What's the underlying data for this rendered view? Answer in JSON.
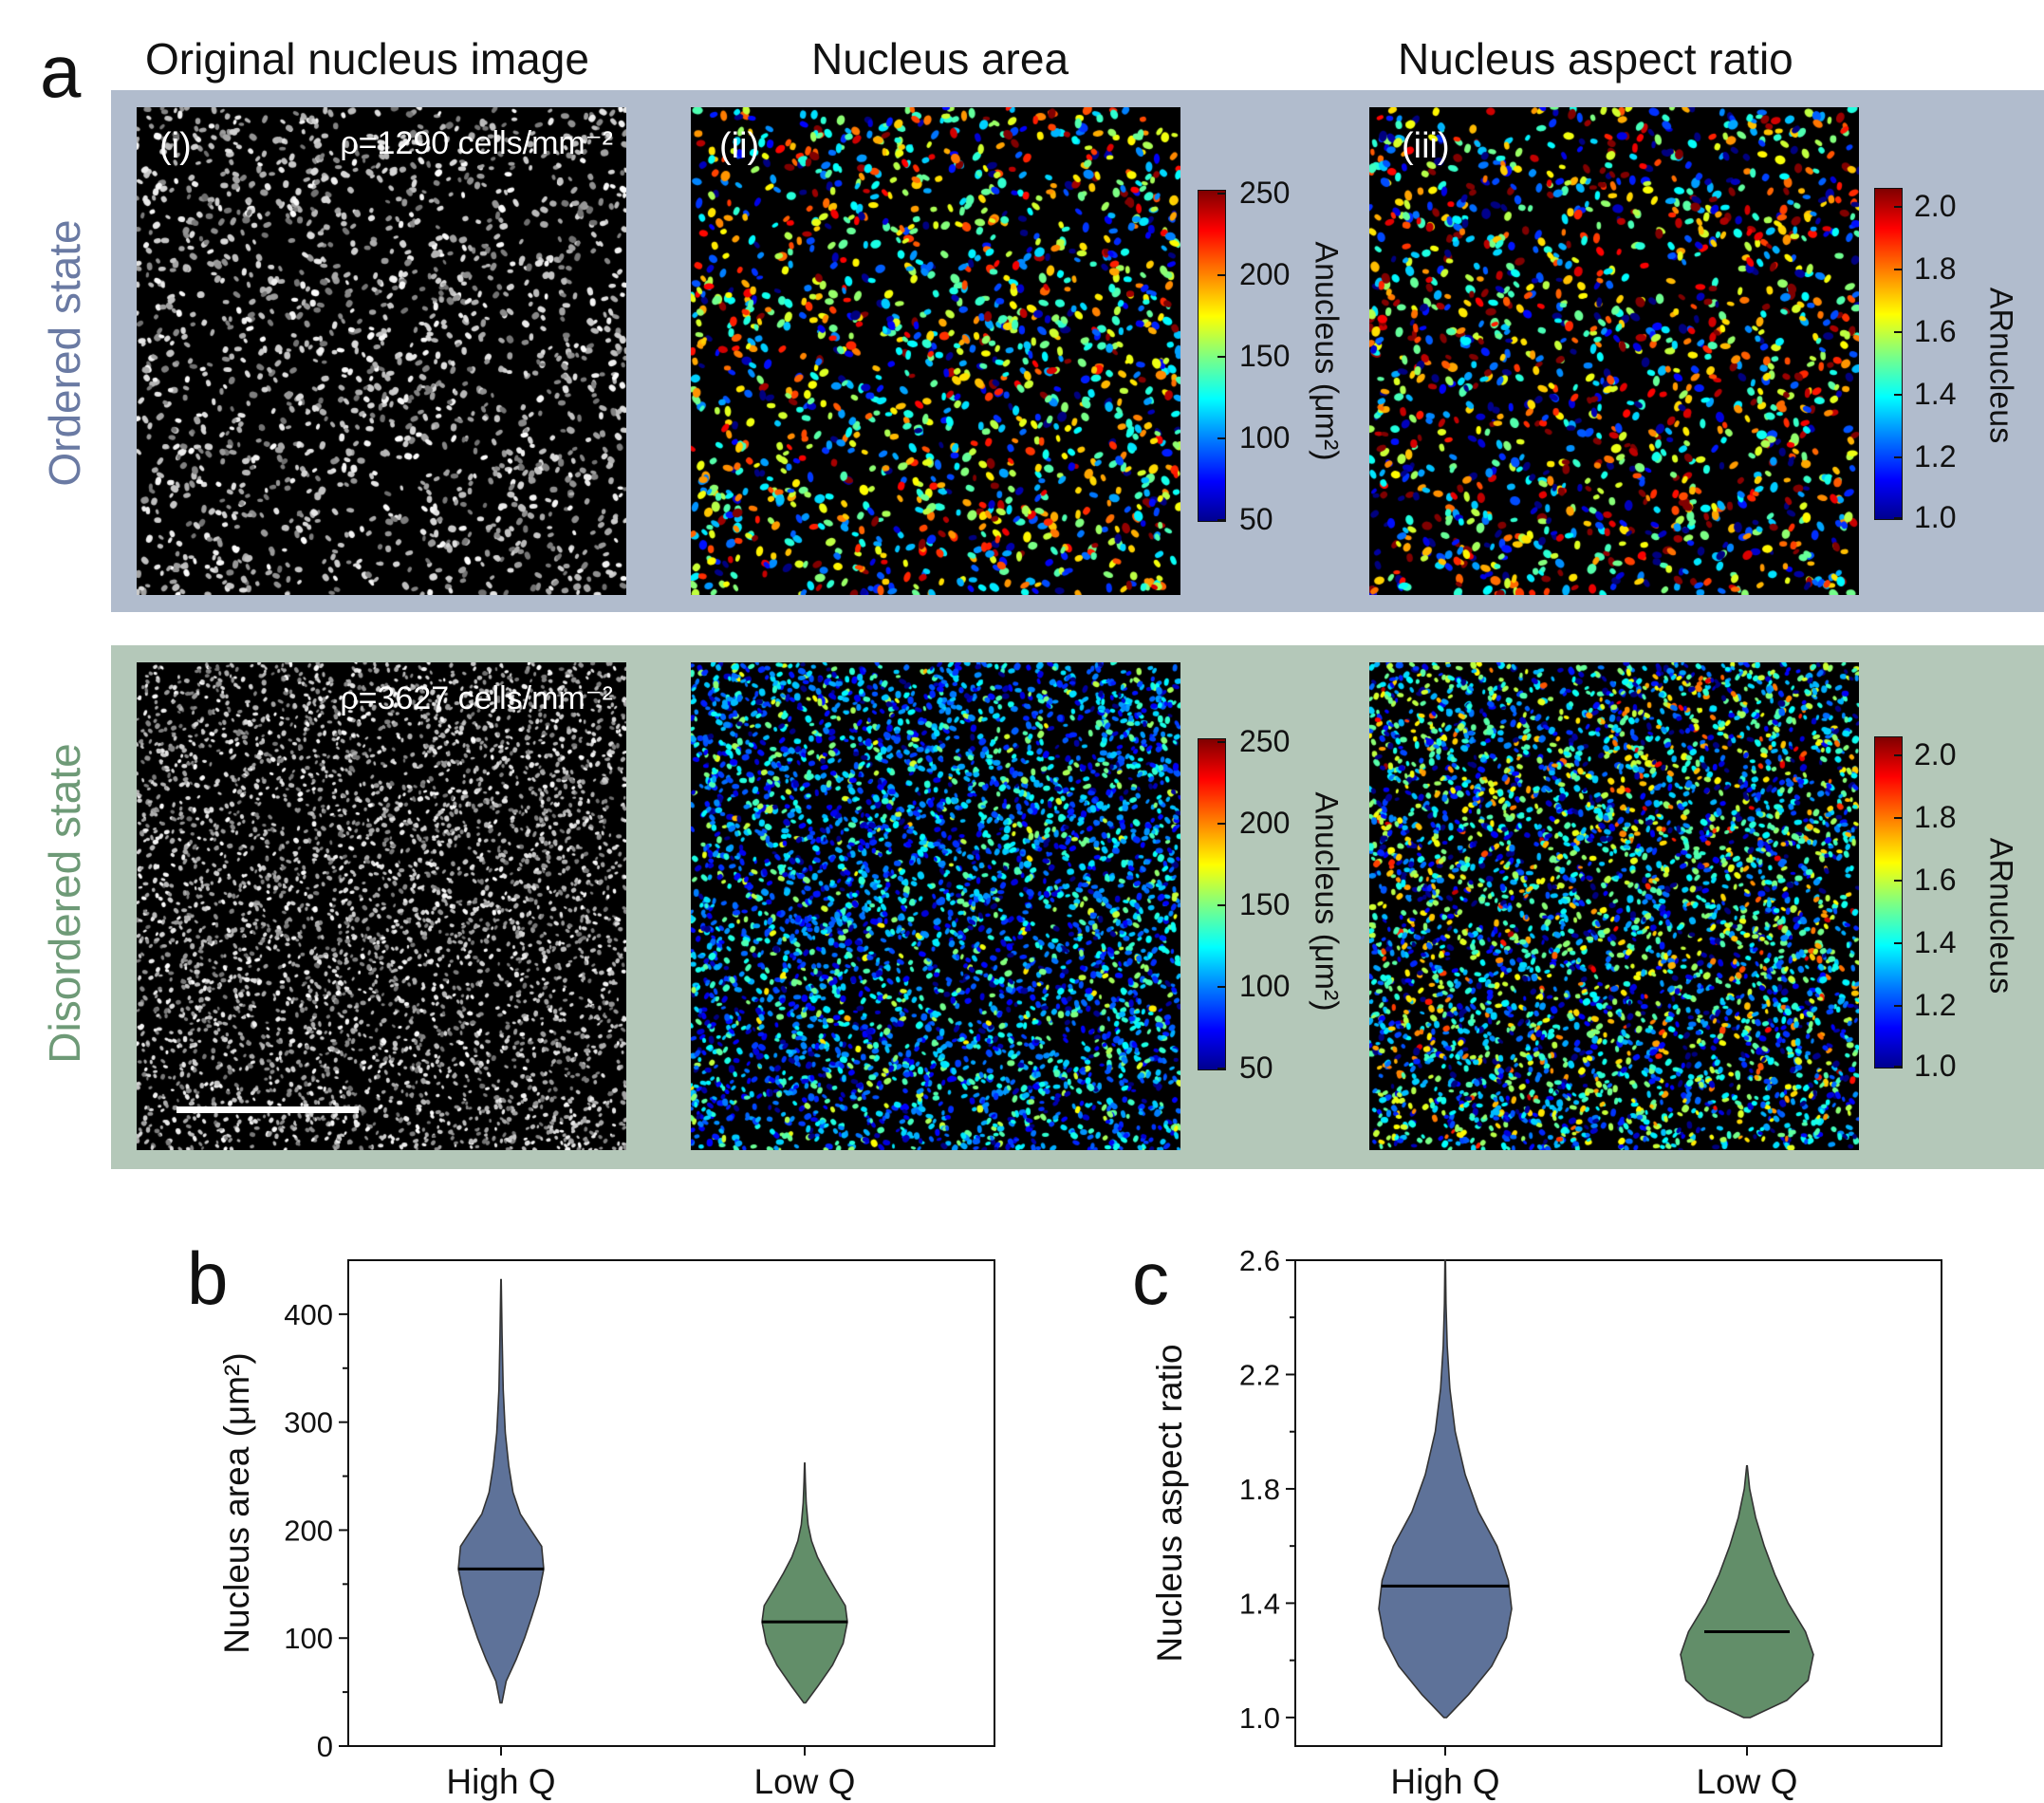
{
  "panel_labels": {
    "a": "a",
    "b": "b",
    "c": "c"
  },
  "column_titles": {
    "original": "Original nucleus image",
    "area": "Nucleus area",
    "aspect": "Nucleus aspect ratio"
  },
  "row_labels": {
    "ordered": "Ordered state",
    "disordered": "Disordered state"
  },
  "colors": {
    "ordered_band": "#b1bccd",
    "disordered_band": "#b4c8b9",
    "ordered_text": "#6a7aa3",
    "disordered_text": "#6e9a77",
    "high_q_fill": "#5e7299",
    "low_q_fill": "#628e69"
  },
  "images": {
    "ordered": {
      "roman_i": "(i)",
      "roman_ii": "(ii)",
      "roman_iii": "(iii)",
      "density_label": "ρ=1290 cells/mm⁻²"
    },
    "disordered": {
      "density_label": "ρ=3627 cells/mm⁻²"
    }
  },
  "colorbars": {
    "area": {
      "title": "Anucleus (μm²)",
      "ticks": [
        "250",
        "200",
        "150",
        "100",
        "50"
      ],
      "min": 50,
      "max": 250,
      "colormap": "jet"
    },
    "aspect": {
      "title": "ARnucleus",
      "ticks": [
        "2.0",
        "1.8",
        "1.6",
        "1.4",
        "1.2",
        "1.0"
      ],
      "min": 1.0,
      "max": 2.0,
      "colormap": "jet"
    }
  },
  "chart_data": [
    {
      "type": "violin",
      "panel": "b",
      "categories": [
        "High Q",
        "Low Q"
      ],
      "ylabel": "Nucleus area (μm²)",
      "ylim": [
        0,
        450
      ],
      "yticks": [
        0,
        100,
        200,
        300,
        400
      ],
      "series": [
        {
          "category": "High Q",
          "min": 40,
          "max": 432,
          "median": 164,
          "profile": [
            [
              40,
              0.02
            ],
            [
              60,
              0.12
            ],
            [
              80,
              0.35
            ],
            [
              100,
              0.55
            ],
            [
              120,
              0.72
            ],
            [
              140,
              0.88
            ],
            [
              164,
              1.0
            ],
            [
              185,
              0.95
            ],
            [
              200,
              0.7
            ],
            [
              215,
              0.45
            ],
            [
              235,
              0.28
            ],
            [
              260,
              0.18
            ],
            [
              290,
              0.1
            ],
            [
              330,
              0.05
            ],
            [
              380,
              0.025
            ],
            [
              432,
              0.005
            ]
          ]
        },
        {
          "category": "Low Q",
          "min": 40,
          "max": 262,
          "median": 115,
          "profile": [
            [
              40,
              0.02
            ],
            [
              55,
              0.3
            ],
            [
              75,
              0.65
            ],
            [
              95,
              0.9
            ],
            [
              115,
              1.0
            ],
            [
              130,
              0.95
            ],
            [
              145,
              0.72
            ],
            [
              160,
              0.5
            ],
            [
              175,
              0.3
            ],
            [
              190,
              0.16
            ],
            [
              205,
              0.08
            ],
            [
              225,
              0.035
            ],
            [
              245,
              0.015
            ],
            [
              262,
              0.005
            ]
          ]
        }
      ]
    },
    {
      "type": "violin",
      "panel": "c",
      "categories": [
        "High Q",
        "Low Q"
      ],
      "ylabel": "Nucleus aspect ratio",
      "ylim": [
        0.9,
        2.6
      ],
      "yticks": [
        1.0,
        1.4,
        1.8,
        2.2,
        2.6
      ],
      "series": [
        {
          "category": "High Q",
          "min": 1.0,
          "max": 2.6,
          "median": 1.46,
          "profile": [
            [
              1.0,
              0.02
            ],
            [
              1.08,
              0.35
            ],
            [
              1.18,
              0.7
            ],
            [
              1.28,
              0.92
            ],
            [
              1.38,
              1.0
            ],
            [
              1.48,
              0.95
            ],
            [
              1.6,
              0.78
            ],
            [
              1.72,
              0.5
            ],
            [
              1.85,
              0.3
            ],
            [
              2.0,
              0.15
            ],
            [
              2.15,
              0.07
            ],
            [
              2.3,
              0.03
            ],
            [
              2.45,
              0.012
            ],
            [
              2.6,
              0.004
            ]
          ]
        },
        {
          "category": "Low Q",
          "min": 1.0,
          "max": 1.88,
          "median": 1.3,
          "profile": [
            [
              1.0,
              0.05
            ],
            [
              1.06,
              0.6
            ],
            [
              1.13,
              0.92
            ],
            [
              1.22,
              1.0
            ],
            [
              1.3,
              0.88
            ],
            [
              1.4,
              0.62
            ],
            [
              1.5,
              0.42
            ],
            [
              1.6,
              0.26
            ],
            [
              1.7,
              0.13
            ],
            [
              1.8,
              0.04
            ],
            [
              1.88,
              0.005
            ]
          ]
        }
      ]
    }
  ]
}
